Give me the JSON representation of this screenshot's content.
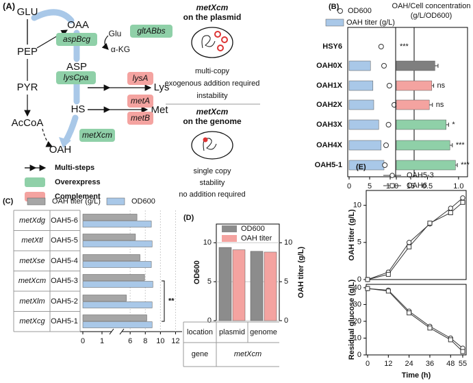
{
  "panel_a": {
    "label": "(A)",
    "metabolites": [
      "GLU",
      "OAA",
      "PEP",
      "PYR",
      "AcCoA",
      "ASP",
      "HS",
      "Lys",
      "Met",
      "OAH",
      "Glu",
      "α-KG"
    ],
    "enzymes": [
      "aspBcg",
      "gltABbs",
      "lysCpa",
      "lysA",
      "metA",
      "metB",
      "metXcm"
    ],
    "legend": [
      "Multi-steps",
      "Overexpress",
      "Complement"
    ],
    "plasmid": {
      "gene": "metXcm",
      "place": "on the plasmid",
      "features": [
        "multi-copy",
        "exogenous addition required",
        "instability"
      ]
    },
    "genome": {
      "gene": "metXcm",
      "place": "on the genome",
      "features": [
        "single copy",
        "stability",
        "no addition required"
      ]
    }
  },
  "chart_data": [
    {
      "type": "hbar",
      "panel": "(B)",
      "categories": [
        "HSY6",
        "OAH0X",
        "OAH1X",
        "OAH2X",
        "OAH3X",
        "OAH4X",
        "OAH5-1"
      ],
      "series": [
        {
          "name": "OD600",
          "marker": "circle",
          "values": [
            7.8,
            8.5,
            9.8,
            11.0,
            9.6,
            9.0,
            8.7
          ]
        },
        {
          "name": "OAH titer (g/L)",
          "color": "#a9c8e8",
          "values": [
            0,
            5.2,
            5.8,
            6.0,
            7.2,
            7.8,
            8.5
          ]
        }
      ],
      "xlim": [
        0,
        15
      ],
      "xticks": [
        0,
        5,
        10,
        15
      ]
    },
    {
      "type": "hbar",
      "title": [
        "OAH/Cell concentration",
        "(g/L/OD600)"
      ],
      "values": [
        0,
        0.62,
        0.57,
        0.53,
        0.8,
        0.86,
        0.95
      ],
      "errors": [
        0,
        0.05,
        0.03,
        0.05,
        0.04,
        0.04,
        0.03
      ],
      "colors": [
        "#7f7f7f",
        "#7f7f7f",
        "#f4a3a0",
        "#f4a3a0",
        "#8fd0a8",
        "#8fd0a8",
        "#8fd0a8"
      ],
      "annotations": [
        "***",
        null,
        "ns",
        "ns",
        "*",
        "***",
        "***"
      ],
      "xlim": [
        0,
        1.1
      ],
      "xticks": [
        0,
        0.5,
        {
          "value": 1,
          "label": "1.0"
        }
      ]
    },
    {
      "type": "hbar",
      "panel": "(C)",
      "genes": [
        "metXdg",
        "metXtl",
        "metXse",
        "metXcm",
        "metXlm",
        "metXcg"
      ],
      "categories": [
        "OAH5-6",
        "OAH5-5",
        "OAH5-4",
        "OAH5-3",
        "OAH5-2",
        "OAH5-1"
      ],
      "series": [
        {
          "name": "OAH titer (g/L)",
          "color": "#a6a6a6",
          "values": [
            6.9,
            6.7,
            7.3,
            7.9,
            5.5,
            8.2
          ]
        },
        {
          "name": "OD600",
          "color": "#a9c8e8",
          "values": [
            8.8,
            8.9,
            8.8,
            9.0,
            8.9,
            8.9
          ]
        }
      ],
      "xlim": [
        0,
        12.5
      ],
      "x_break": [
        1.5,
        4.9
      ],
      "xticks": [
        0,
        1,
        6,
        8,
        10,
        12
      ],
      "significance": "**"
    },
    {
      "type": "bar",
      "panel": "(D)",
      "categories": [
        "plasmid",
        "genome"
      ],
      "series": [
        {
          "name": "OD600",
          "color": "#8c8c8c",
          "values": [
            9.4,
            8.9
          ]
        },
        {
          "name": "OAH titer",
          "color": "#f4a3a0",
          "axis": "y2",
          "values": [
            9.1,
            8.8
          ]
        }
      ],
      "ylabel": "OD600",
      "y2label": "OAH titer (g/L)",
      "ylim": [
        0,
        12.4
      ],
      "yticks": [
        0,
        5,
        10
      ],
      "y2lim": [
        0,
        12.4
      ],
      "y2ticks": [
        0,
        5,
        10
      ],
      "grid": true,
      "table": {
        "rows": [
          "location",
          "gene"
        ],
        "gene": "metXcm"
      }
    },
    {
      "type": "line",
      "panel": "(E)",
      "x": [
        0,
        12,
        24,
        36,
        48,
        55
      ],
      "series": [
        {
          "name": "OAH5-3",
          "marker": "circle",
          "color": "#333333",
          "values": [
            0,
            1.0,
            5.0,
            7.5,
            9.6,
            11.0
          ]
        },
        {
          "name": "OAH6",
          "marker": "square",
          "color": "#333333",
          "values": [
            0,
            0.7,
            4.4,
            7.6,
            9.0,
            10.4
          ]
        }
      ],
      "ylabel": "OAH titer (g/L)",
      "xlim": [
        0,
        56
      ],
      "ylim": [
        0,
        12
      ],
      "yticks": [
        0,
        5,
        10
      ]
    },
    {
      "type": "line",
      "x": [
        0,
        12,
        24,
        36,
        48,
        55
      ],
      "series": [
        {
          "marker": "circle",
          "color": "#333333",
          "values": [
            39.5,
            38.5,
            26,
            17,
            10,
            4
          ]
        },
        {
          "marker": "square",
          "color": "#333333",
          "values": [
            39.5,
            38,
            25,
            16,
            9,
            2
          ]
        }
      ],
      "ylabel": "Residual glucose (g/L)",
      "xlabel": "Time (h)",
      "xlim": [
        0,
        56
      ],
      "ylim": [
        0,
        42
      ],
      "yticks": [
        0,
        10,
        20,
        30,
        40
      ],
      "xticks": [
        0,
        12,
        24,
        36,
        48,
        55
      ]
    }
  ]
}
